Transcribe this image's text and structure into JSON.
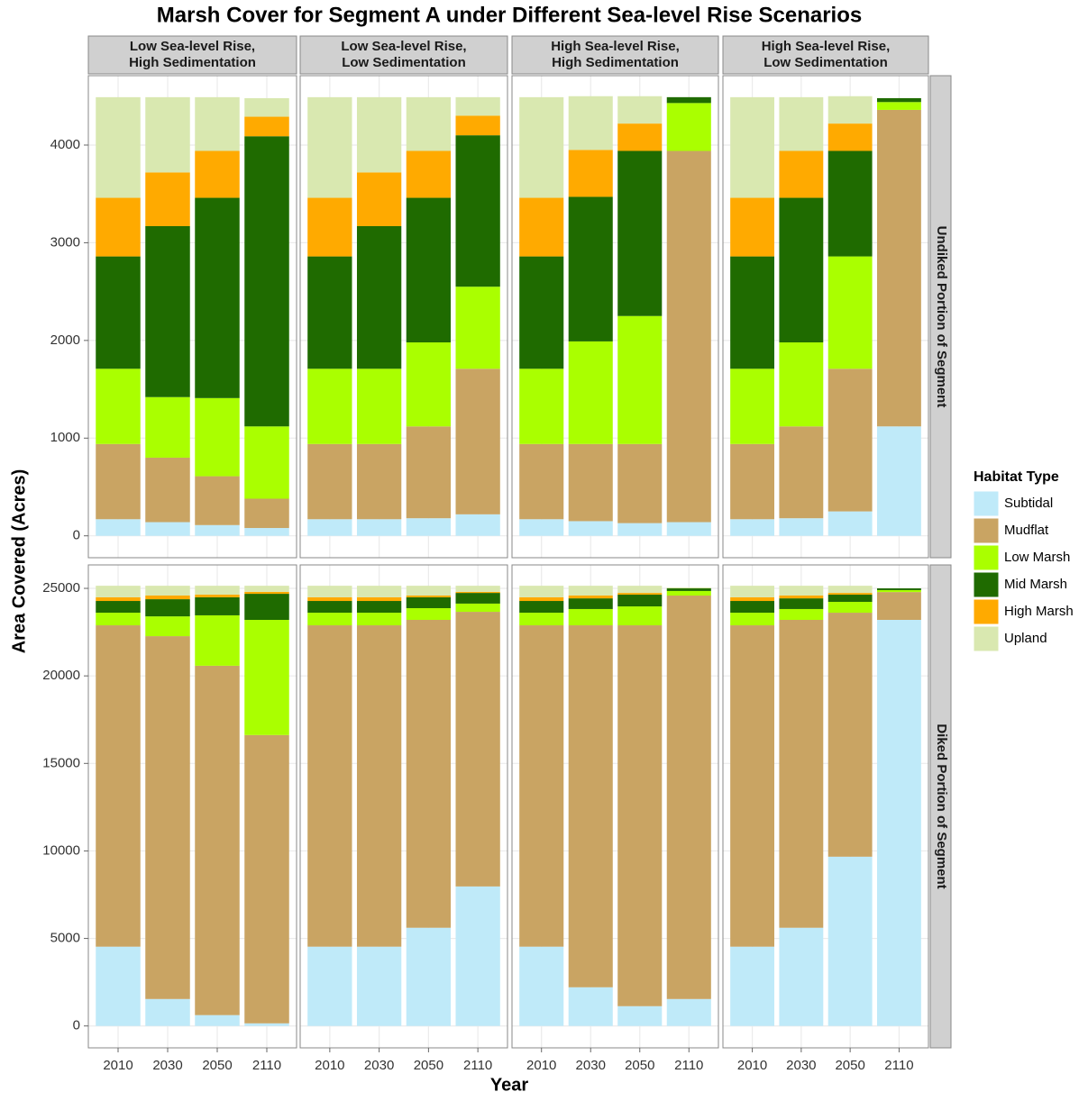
{
  "chart_data": {
    "type": "bar",
    "stacked": true,
    "title": "Marsh Cover for Segment A under Different Sea-level Rise Scenarios",
    "xlabel": "Year",
    "ylabel": "Area Covered (Acres)",
    "legend_title": "Habitat Type",
    "legend_position": "right",
    "grid": true,
    "categories": [
      "2010",
      "2030",
      "2050",
      "2110"
    ],
    "series": [
      {
        "name": "Subtidal",
        "color": "#bfeaf9"
      },
      {
        "name": "Mudflat",
        "color": "#c9a463"
      },
      {
        "name": "Low Marsh",
        "color": "#aaff00"
      },
      {
        "name": "Mid Marsh",
        "color": "#1f6b00"
      },
      {
        "name": "High Marsh",
        "color": "#ffaa00"
      },
      {
        "name": "Upland",
        "color": "#d9e8b0"
      }
    ],
    "columns": [
      [
        "Low Sea-level Rise,",
        "High Sedimentation"
      ],
      [
        "Low Sea-level Rise,",
        "Low Sedimentation"
      ],
      [
        "High Sea-level Rise,",
        "High Sedimentation"
      ],
      [
        "High Sea-level Rise,",
        "Low Sedimentation"
      ]
    ],
    "rows": [
      {
        "label": "Undiked Portion of Segment",
        "ylim": [
          -224,
          4710
        ],
        "yticks": [
          0,
          1000,
          2000,
          3000,
          4000
        ],
        "panels": [
          {
            "values": [
              [
                170,
                140,
                110,
                80
              ],
              [
                770,
                660,
                500,
                300
              ],
              [
                770,
                620,
                800,
                740
              ],
              [
                1150,
                1750,
                2050,
                2970
              ],
              [
                600,
                550,
                480,
                200
              ],
              [
                1030,
                770,
                550,
                190
              ]
            ]
          },
          {
            "values": [
              [
                170,
                170,
                180,
                220
              ],
              [
                770,
                770,
                940,
                1490
              ],
              [
                770,
                770,
                860,
                840
              ],
              [
                1150,
                1460,
                1480,
                1550
              ],
              [
                600,
                550,
                480,
                200
              ],
              [
                1030,
                770,
                550,
                190
              ]
            ]
          },
          {
            "values": [
              [
                170,
                150,
                130,
                140
              ],
              [
                770,
                790,
                810,
                3800
              ],
              [
                770,
                1050,
                1310,
                490
              ],
              [
                1150,
                1480,
                1690,
                60
              ],
              [
                600,
                480,
                280,
                0
              ],
              [
                1030,
                550,
                280,
                0
              ]
            ]
          },
          {
            "values": [
              [
                170,
                180,
                250,
                1120
              ],
              [
                770,
                940,
                1460,
                3240
              ],
              [
                770,
                860,
                1150,
                80
              ],
              [
                1150,
                1480,
                1080,
                40
              ],
              [
                600,
                480,
                280,
                0
              ],
              [
                1030,
                550,
                280,
                0
              ]
            ]
          }
        ]
      },
      {
        "label": "Diked Portion of Segment",
        "ylim": [
          -1250,
          26340
        ],
        "yticks": [
          0,
          5000,
          10000,
          15000,
          20000,
          25000
        ],
        "panels": [
          {
            "values": [
              [
                4530,
                1540,
                620,
                150
              ],
              [
                18360,
                20730,
                19960,
                16470
              ],
              [
                720,
                1130,
                2880,
                6580
              ],
              [
                670,
                980,
                1030,
                1490
              ],
              [
                210,
                210,
                150,
                110
              ],
              [
                660,
                560,
                510,
                350
              ]
            ]
          },
          {
            "values": [
              [
                4530,
                4530,
                5610,
                7970
              ],
              [
                18360,
                18360,
                17590,
                15690
              ],
              [
                720,
                720,
                670,
                470
              ],
              [
                670,
                670,
                620,
                610
              ],
              [
                210,
                210,
                100,
                60
              ],
              [
                660,
                660,
                560,
                350
              ]
            ]
          },
          {
            "values": [
              [
                4530,
                2210,
                1130,
                1540
              ],
              [
                18360,
                20680,
                21760,
                23050
              ],
              [
                720,
                930,
                1080,
                260
              ],
              [
                670,
                610,
                670,
                150
              ],
              [
                210,
                160,
                100,
                0
              ],
              [
                660,
                560,
                410,
                50
              ]
            ]
          },
          {
            "values": [
              [
                4530,
                5610,
                9670,
                23200
              ],
              [
                18360,
                17590,
                13940,
                1590
              ],
              [
                720,
                620,
                620,
                110
              ],
              [
                670,
                610,
                410,
                100
              ],
              [
                210,
                160,
                100,
                0
              ],
              [
                660,
                560,
                410,
                0
              ]
            ]
          }
        ]
      }
    ]
  }
}
